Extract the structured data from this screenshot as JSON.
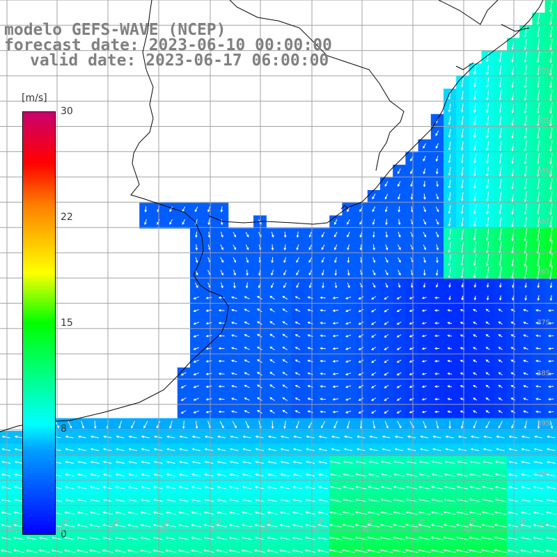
{
  "title": {
    "line1": "modelo GEFS-WAVE (NCEP)",
    "line2": "forecast date: 2023-06-10 00:00:00",
    "line3": "valid date: 2023-06-17 06:00:00"
  },
  "colorbar": {
    "unit": "[m/s]",
    "ticks": [
      "30",
      "22",
      "15",
      "8",
      "0"
    ],
    "tick_values": [
      30,
      22,
      15,
      8,
      0
    ],
    "range": [
      0,
      30
    ],
    "colors": [
      "#0000ff",
      "#00a0ff",
      "#00ffff",
      "#00ff00",
      "#ffff00",
      "#ff7f00",
      "#ff0000",
      "#c8006e"
    ]
  },
  "lat_labels": [
    "32S",
    "33S",
    "34S",
    "35S",
    "36S",
    "37S",
    "38S",
    "39S",
    "40S",
    "41S"
  ],
  "lon_labels": [
    "61W",
    "60W",
    "59W",
    "58W",
    "57W",
    "56W",
    "55W",
    "54W",
    "53W",
    "52W",
    "51W"
  ],
  "map": {
    "variable": "wind speed",
    "land_color": "#ffffff",
    "grid_color": "#a0a0a0",
    "coast_color": "#000000",
    "arrow_color": "#ffffff"
  }
}
